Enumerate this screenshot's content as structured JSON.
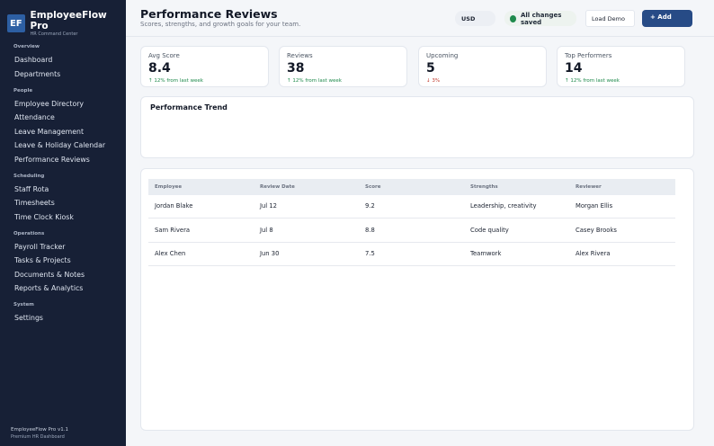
{
  "brand": {
    "logo": "EF",
    "name": "EmployeeFlow Pro",
    "subtitle": "HR Command Center"
  },
  "sidebar": {
    "sections": [
      {
        "title": "Overview",
        "items": [
          "Dashboard",
          "Departments"
        ]
      },
      {
        "title": "People",
        "items": [
          "Employee Directory",
          "Attendance",
          "Leave Management",
          "Leave & Holiday Calendar",
          "Performance Reviews"
        ]
      },
      {
        "title": "Scheduling",
        "items": [
          "Staff Rota",
          "Timesheets",
          "Time Clock Kiosk"
        ]
      },
      {
        "title": "Operations",
        "items": [
          "Payroll Tracker",
          "Tasks & Projects",
          "Documents & Notes",
          "Reports & Analytics"
        ]
      },
      {
        "title": "System",
        "items": [
          "Settings"
        ]
      }
    ],
    "footer_version": "EmployeeFlow Pro v1.1",
    "footer_sub": "Premium HR Dashboard"
  },
  "header": {
    "title": "Performance Reviews",
    "subtitle": "Scores, strengths, and growth goals for your team.",
    "currency": "USD",
    "save_status": "All changes saved",
    "load_demo_label": "Load Demo",
    "add_label": "+ Add"
  },
  "stats": [
    {
      "label": "Avg Score",
      "value": "8.4",
      "delta": "↑ 12% from last week",
      "trend": "up"
    },
    {
      "label": "Reviews",
      "value": "38",
      "delta": "↑ 12% from last week",
      "trend": "up"
    },
    {
      "label": "Upcoming",
      "value": "5",
      "delta": "↓ 3%",
      "trend": "down"
    },
    {
      "label": "Top Performers",
      "value": "14",
      "delta": "↑ 12% from last week",
      "trend": "up"
    }
  ],
  "trend_panel": {
    "title": "Performance Trend"
  },
  "table": {
    "columns": [
      "Employee",
      "Review Date",
      "Score",
      "Strengths",
      "Reviewer"
    ],
    "rows": [
      [
        "Jordan Blake",
        "Jul 12",
        "9.2",
        "Leadership, creativity",
        "Morgan Ellis"
      ],
      [
        "Sam Rivera",
        "Jul 8",
        "8.8",
        "Code quality",
        "Casey Brooks"
      ],
      [
        "Alex Chen",
        "Jun 30",
        "7.5",
        "Teamwork",
        "Alex Rivera"
      ]
    ]
  },
  "colors": {
    "sidebar_bg": "#172036",
    "accent": "#274b86",
    "positive": "#1f8a4c",
    "negative": "#c0392b"
  },
  "icons": {
    "saved": "status-dot-icon",
    "trend_up": "arrow-up-icon",
    "trend_down": "arrow-down-icon"
  }
}
